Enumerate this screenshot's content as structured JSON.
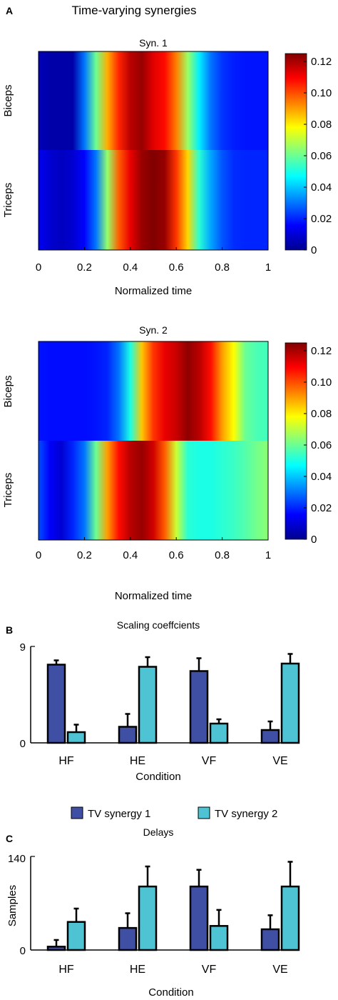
{
  "panels": {
    "a": "A",
    "b": "B",
    "c": "C"
  },
  "chart_data": [
    {
      "type": "heatmap",
      "title": "Syn. 1",
      "suptitle": "Time-varying  synergies",
      "panel": "A",
      "rows": [
        "Biceps",
        "Triceps"
      ],
      "xlabel": "Normalized time",
      "xticks": [
        "0",
        "0.2",
        "0.4",
        "0.6",
        "0.8",
        "1"
      ],
      "xlim": [
        0,
        1
      ],
      "colorbar_ticks": [
        "0.12",
        "0.10",
        "0.08",
        "0.06",
        "0.04",
        "0.02",
        "0"
      ],
      "colorbar_range": [
        0,
        0.125
      ],
      "colormap": "jet",
      "x": [
        0.0,
        0.05,
        0.1,
        0.15,
        0.2,
        0.25,
        0.3,
        0.35,
        0.4,
        0.45,
        0.5,
        0.55,
        0.6,
        0.65,
        0.7,
        0.75,
        0.8,
        0.85,
        0.9,
        0.95,
        1.0
      ],
      "values": [
        [
          0.007,
          0.005,
          0.005,
          0.005,
          0.03,
          0.06,
          0.088,
          0.105,
          0.118,
          0.122,
          0.113,
          0.108,
          0.094,
          0.066,
          0.045,
          0.03,
          0.022,
          0.019,
          0.018,
          0.018,
          0.018
        ],
        [
          0.014,
          0.01,
          0.008,
          0.01,
          0.016,
          0.03,
          0.065,
          0.098,
          0.112,
          0.122,
          0.125,
          0.122,
          0.103,
          0.083,
          0.052,
          0.036,
          0.026,
          0.021,
          0.02,
          0.02,
          0.02
        ]
      ]
    },
    {
      "type": "heatmap",
      "title": "Syn. 2",
      "rows": [
        "Biceps",
        "Triceps"
      ],
      "xlabel": "Normalized time",
      "xticks": [
        "0",
        "0.2",
        "0.4",
        "0.6",
        "0.8",
        "1"
      ],
      "xlim": [
        0,
        1
      ],
      "colorbar_ticks": [
        "0.12",
        "0.10",
        "0.08",
        "0.06",
        "0.04",
        "0.02",
        "0"
      ],
      "colorbar_range": [
        0,
        0.125
      ],
      "colormap": "jet",
      "x": [
        0.0,
        0.05,
        0.1,
        0.15,
        0.2,
        0.25,
        0.3,
        0.35,
        0.4,
        0.45,
        0.5,
        0.55,
        0.6,
        0.65,
        0.7,
        0.75,
        0.8,
        0.85,
        0.9,
        0.95,
        1.0
      ],
      "values": [
        [
          0.018,
          0.017,
          0.017,
          0.017,
          0.017,
          0.018,
          0.02,
          0.03,
          0.05,
          0.085,
          0.103,
          0.112,
          0.116,
          0.123,
          0.118,
          0.108,
          0.09,
          0.078,
          0.06,
          0.056,
          0.055
        ],
        [
          0.025,
          0.015,
          0.01,
          0.02,
          0.03,
          0.06,
          0.09,
          0.108,
          0.118,
          0.122,
          0.115,
          0.098,
          0.072,
          0.052,
          0.05,
          0.05,
          0.052,
          0.054,
          0.057,
          0.061,
          0.064
        ]
      ]
    },
    {
      "type": "bar",
      "title": "Scaling coeffcients",
      "panel": "B",
      "categories": [
        "HF",
        "HE",
        "VF",
        "VE"
      ],
      "xlabel": "Condition",
      "ylabel": "",
      "ylim": [
        0,
        9
      ],
      "yticks": [
        "9",
        "0"
      ],
      "series": [
        {
          "name": "TV synergy 1",
          "color": "#3f4fa3",
          "values": [
            7.3,
            1.5,
            6.7,
            1.2
          ],
          "errors": [
            0.4,
            1.2,
            1.2,
            0.8
          ]
        },
        {
          "name": "TV synergy 2",
          "color": "#4ec3d4",
          "values": [
            1.0,
            7.1,
            1.8,
            7.4
          ],
          "errors": [
            0.7,
            0.9,
            0.4,
            0.9
          ]
        }
      ]
    },
    {
      "type": "bar",
      "title": "Delays",
      "panel": "C",
      "categories": [
        "HF",
        "HE",
        "VF",
        "VE"
      ],
      "xlabel": "Condition",
      "ylabel": "Samples",
      "ylim": [
        0,
        140
      ],
      "yticks": [
        "140",
        "0"
      ],
      "series": [
        {
          "name": "TV synergy 1",
          "color": "#3f4fa3",
          "values": [
            5,
            33,
            95,
            31
          ],
          "errors": [
            10,
            22,
            25,
            21
          ]
        },
        {
          "name": "TV synergy 2",
          "color": "#4ec3d4",
          "values": [
            42,
            95,
            36,
            95
          ],
          "errors": [
            20,
            30,
            24,
            37
          ]
        }
      ]
    }
  ]
}
